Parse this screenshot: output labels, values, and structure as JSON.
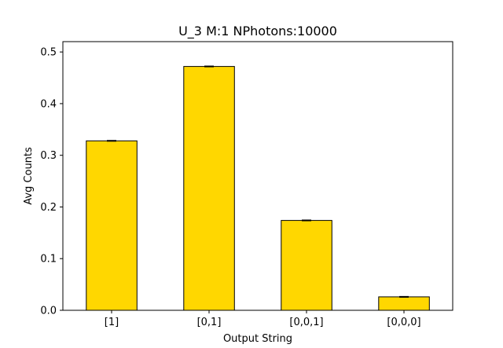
{
  "chart_data": {
    "type": "bar",
    "title": "U_3 M:1 NPhotons:10000",
    "xlabel": "Output String",
    "ylabel": "Avg Counts",
    "categories": [
      "[1]",
      "[0,1]",
      "[0,0,1]",
      "[0,0,0]"
    ],
    "values": [
      0.328,
      0.472,
      0.174,
      0.026
    ],
    "error_bars": [
      0.0008,
      0.0008,
      0.0008,
      0.0008
    ],
    "ylim": [
      0,
      0.52
    ],
    "yticks": [
      "0.0",
      "0.1",
      "0.2",
      "0.3",
      "0.4",
      "0.5"
    ],
    "ytick_values": [
      0.0,
      0.1,
      0.2,
      0.3,
      0.4,
      0.5
    ],
    "bar_color": "#FFD700",
    "bar_edge_color": "#000000",
    "grid": false,
    "legend": "none"
  }
}
